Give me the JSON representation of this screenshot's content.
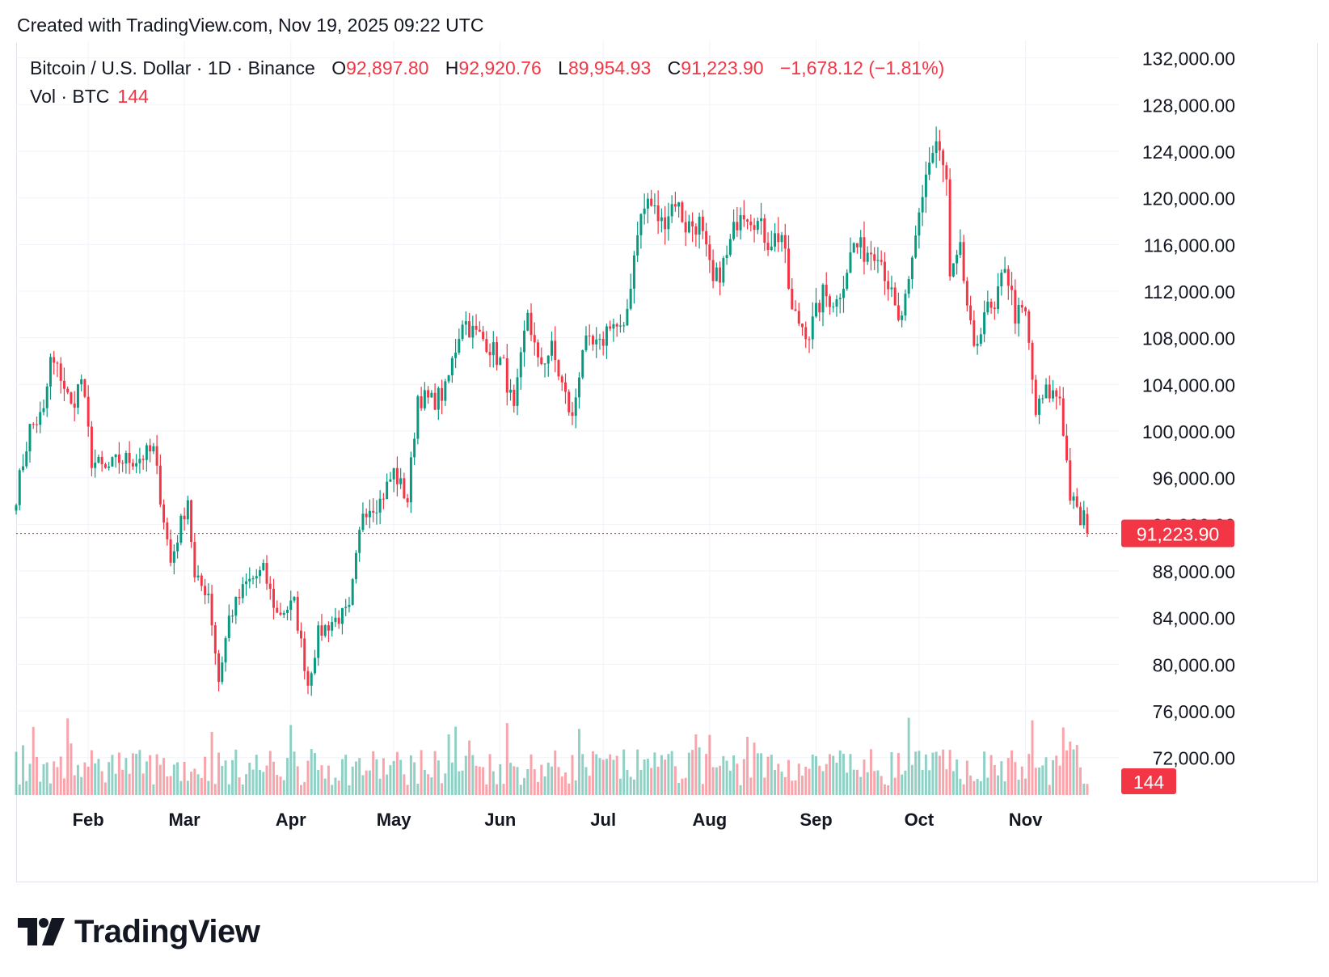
{
  "header": {
    "created_with": "Created with TradingView.com, Nov 19, 2025 09:22 UTC"
  },
  "legend": {
    "symbol": "Bitcoin / U.S. Dollar · 1D · Binance",
    "o_label": "O",
    "o_value": "92,897.80",
    "h_label": "H",
    "h_value": "92,920.76",
    "l_label": "L",
    "l_value": "89,954.93",
    "c_label": "C",
    "c_value": "91,223.90",
    "change": "−1,678.12 (−1.81%)",
    "vol_label": "Vol · BTC",
    "vol_value": "144"
  },
  "brand": {
    "name": "TradingView",
    "logo_icon": "tradingview-logo-icon"
  },
  "colors": {
    "up": "#089981",
    "down": "#f23645",
    "grid": "#f0f3fa",
    "text": "#131722"
  },
  "chart_data": {
    "type": "candlestick",
    "price_axis_labels": [
      "132,000.00",
      "128,000.00",
      "124,000.00",
      "120,000.00",
      "116,000.00",
      "112,000.00",
      "108,000.00",
      "104,000.00",
      "100,000.00",
      "96,000.00",
      "92,000.00",
      "88,000.00",
      "84,000.00",
      "80,000.00",
      "76,000.00",
      "72,000.00"
    ],
    "price_axis_values": [
      132000,
      128000,
      124000,
      120000,
      116000,
      112000,
      108000,
      104000,
      100000,
      96000,
      92000,
      88000,
      84000,
      80000,
      76000,
      72000
    ],
    "ylim": [
      69000,
      133500
    ],
    "time_axis_labels": [
      "Feb",
      "Mar",
      "Apr",
      "May",
      "Jun",
      "Jul",
      "Aug",
      "Sep",
      "Oct",
      "Nov"
    ],
    "time_axis_dates": [
      "2025-02-01",
      "2025-03-01",
      "2025-04-01",
      "2025-05-01",
      "2025-06-01",
      "2025-07-01",
      "2025-08-01",
      "2025-09-01",
      "2025-10-01",
      "2025-11-01"
    ],
    "xlim": [
      "2025-01-11",
      "2025-11-19"
    ],
    "last_price_label": "91,223.90",
    "last_price": 91223.9,
    "last_volume_label": "144",
    "close_anchors": [
      [
        "2025-01-11",
        94500
      ],
      [
        "2025-01-15",
        100200
      ],
      [
        "2025-01-19",
        101500
      ],
      [
        "2025-01-21",
        106000
      ],
      [
        "2025-01-24",
        104800
      ],
      [
        "2025-01-27",
        102000
      ],
      [
        "2025-01-30",
        104500
      ],
      [
        "2025-02-02",
        97500
      ],
      [
        "2025-02-06",
        96600
      ],
      [
        "2025-02-10",
        97500
      ],
      [
        "2025-02-15",
        97600
      ],
      [
        "2025-02-20",
        98300
      ],
      [
        "2025-02-25",
        88700
      ],
      [
        "2025-03-02",
        94300
      ],
      [
        "2025-03-04",
        87200
      ],
      [
        "2025-03-08",
        86200
      ],
      [
        "2025-03-11",
        78600
      ],
      [
        "2025-03-14",
        84000
      ],
      [
        "2025-03-19",
        86900
      ],
      [
        "2025-03-24",
        88000
      ],
      [
        "2025-03-28",
        84300
      ],
      [
        "2025-04-02",
        85200
      ],
      [
        "2025-04-06",
        78300
      ],
      [
        "2025-04-09",
        82600
      ],
      [
        "2025-04-13",
        83700
      ],
      [
        "2025-04-18",
        84500
      ],
      [
        "2025-04-22",
        93300
      ],
      [
        "2025-04-27",
        94000
      ],
      [
        "2025-05-01",
        96500
      ],
      [
        "2025-05-05",
        94100
      ],
      [
        "2025-05-08",
        103000
      ],
      [
        "2025-05-12",
        102500
      ],
      [
        "2025-05-16",
        103400
      ],
      [
        "2025-05-21",
        109700
      ],
      [
        "2025-05-24",
        108500
      ],
      [
        "2025-05-28",
        107700
      ],
      [
        "2025-06-02",
        105500
      ],
      [
        "2025-06-05",
        101500
      ],
      [
        "2025-06-09",
        110300
      ],
      [
        "2025-06-12",
        105600
      ],
      [
        "2025-06-16",
        107000
      ],
      [
        "2025-06-22",
        100900
      ],
      [
        "2025-06-25",
        107300
      ],
      [
        "2025-06-30",
        107100
      ],
      [
        "2025-07-03",
        109500
      ],
      [
        "2025-07-07",
        108200
      ],
      [
        "2025-07-11",
        117500
      ],
      [
        "2025-07-14",
        119800
      ],
      [
        "2025-07-18",
        117800
      ],
      [
        "2025-07-22",
        119900
      ],
      [
        "2025-07-25",
        117600
      ],
      [
        "2025-07-29",
        117800
      ],
      [
        "2025-08-02",
        112500
      ],
      [
        "2025-08-06",
        114900
      ],
      [
        "2025-08-10",
        119300
      ],
      [
        "2025-08-14",
        118300
      ],
      [
        "2025-08-18",
        116300
      ],
      [
        "2025-08-22",
        116900
      ],
      [
        "2025-08-25",
        110100
      ],
      [
        "2025-08-30",
        108400
      ],
      [
        "2025-09-03",
        111700
      ],
      [
        "2025-09-07",
        111100
      ],
      [
        "2025-09-12",
        116000
      ],
      [
        "2025-09-15",
        115400
      ],
      [
        "2025-09-19",
        115700
      ],
      [
        "2025-09-22",
        112700
      ],
      [
        "2025-09-25",
        109000
      ],
      [
        "2025-09-28",
        112100
      ],
      [
        "2025-10-01",
        118600
      ],
      [
        "2025-10-03",
        122200
      ],
      [
        "2025-10-06",
        124700
      ],
      [
        "2025-10-09",
        121300
      ],
      [
        "2025-10-10",
        112800
      ],
      [
        "2025-10-13",
        115200
      ],
      [
        "2025-10-17",
        106400
      ],
      [
        "2025-10-20",
        110500
      ],
      [
        "2025-10-23",
        110000
      ],
      [
        "2025-10-26",
        114500
      ],
      [
        "2025-10-29",
        110000
      ],
      [
        "2025-11-01",
        110000
      ],
      [
        "2025-11-04",
        101500
      ],
      [
        "2025-11-07",
        103300
      ],
      [
        "2025-11-11",
        103000
      ],
      [
        "2025-11-14",
        94500
      ],
      [
        "2025-11-17",
        92200
      ],
      [
        "2025-11-18",
        92900
      ],
      [
        "2025-11-19",
        91223.9
      ]
    ]
  }
}
